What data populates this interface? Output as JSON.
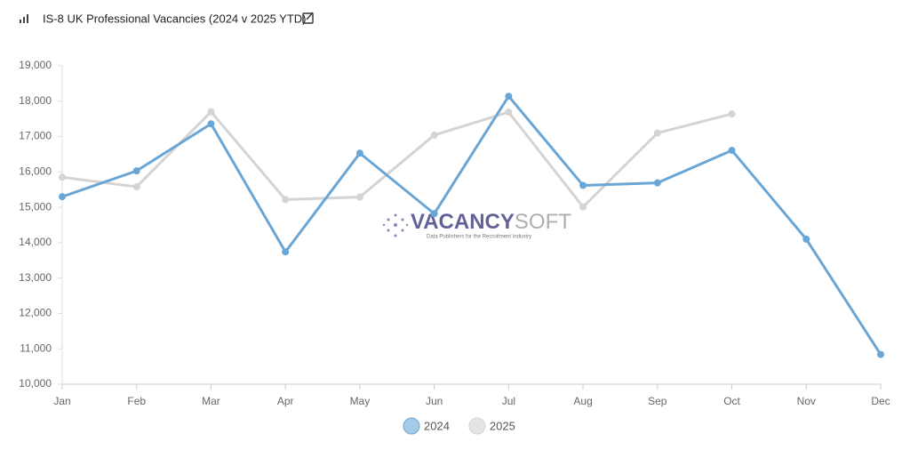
{
  "chart_data": {
    "type": "line",
    "title": "IS-8 UK Professional Vacancies (2024 v 2025 YTD)",
    "categories": [
      "Jan",
      "Feb",
      "Mar",
      "Apr",
      "May",
      "Jun",
      "Jul",
      "Aug",
      "Sep",
      "Oct",
      "Nov",
      "Dec"
    ],
    "series": [
      {
        "name": "2024",
        "color": "#69a6d6",
        "values": [
          15300,
          16030,
          17360,
          13740,
          16530,
          14820,
          18140,
          15620,
          15690,
          16610,
          14100,
          10840
        ]
      },
      {
        "name": "2025",
        "color": "#d4d4d4",
        "values": [
          15850,
          15580,
          17700,
          15220,
          15290,
          17040,
          17690,
          15010,
          17100,
          17640,
          null,
          null
        ]
      }
    ],
    "ylim": [
      10000,
      19000
    ],
    "yticks": [
      {
        "value": 10000,
        "label": "10,000"
      },
      {
        "value": 11000,
        "label": "11,000"
      },
      {
        "value": 12000,
        "label": "12,000"
      },
      {
        "value": 13000,
        "label": "13,000"
      },
      {
        "value": 14000,
        "label": "14,000"
      },
      {
        "value": 15000,
        "label": "15,000"
      },
      {
        "value": 16000,
        "label": "16,000"
      },
      {
        "value": 17000,
        "label": "17,000"
      },
      {
        "value": 18000,
        "label": "18,000"
      },
      {
        "value": 19000,
        "label": "19,000"
      }
    ],
    "grid": false,
    "legend": "bottom",
    "watermark": {
      "parts": [
        "VACANCY",
        "SOFT"
      ],
      "tagline": "Data Publishers for the Recruitment Industry"
    }
  }
}
